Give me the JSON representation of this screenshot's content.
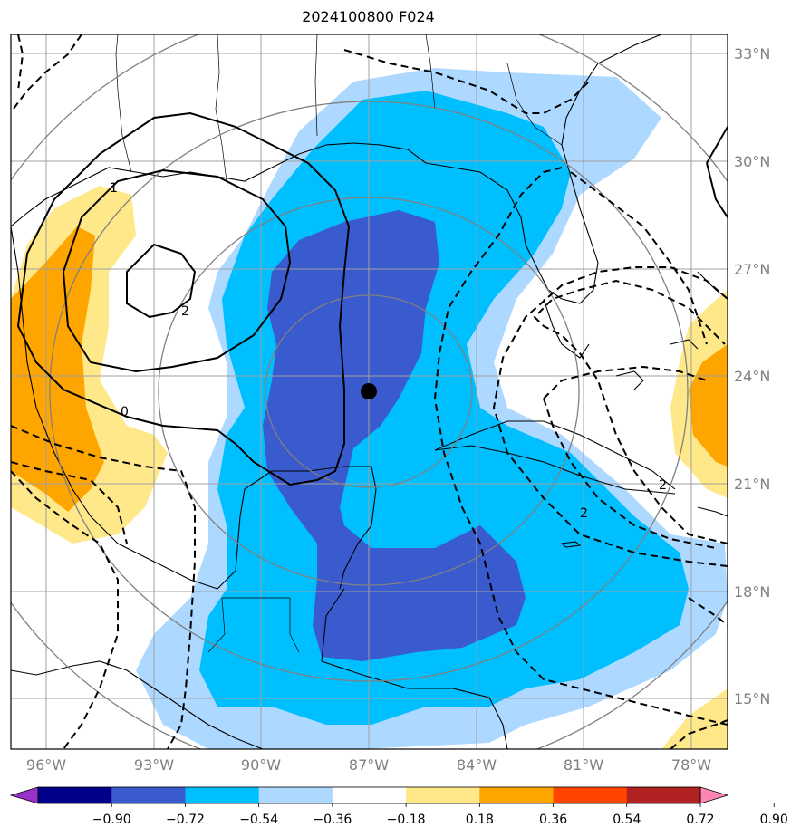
{
  "title": "2024100800 F024",
  "latitude_labels": [
    "33°N",
    "30°N",
    "27°N",
    "24°N",
    "21°N",
    "18°N",
    "15°N"
  ],
  "longitude_labels": [
    "96°W",
    "93°W",
    "90°W",
    "87°W",
    "84°W",
    "81°W",
    "78°W"
  ],
  "colorbar": {
    "tick_labels": [
      "−0.90",
      "−0.72",
      "−0.54",
      "−0.36",
      "−0.18",
      "0.18",
      "0.36",
      "0.54",
      "0.72",
      "0.90"
    ],
    "colors": [
      "#9932cc",
      "#00008b",
      "#3a5bcd",
      "#00bfff",
      "#add8ff",
      "#ffffff",
      "#ffe88a",
      "#ffa500",
      "#ff4500",
      "#b22222",
      "#ff85b5"
    ],
    "extend": "both"
  },
  "contour_labels": [
    "2",
    "1",
    "2",
    "0",
    "2",
    "2"
  ],
  "colors": {
    "grid": "#a0a0a0",
    "range_rings": "#808080",
    "contours": "#000000",
    "center_marker": "#000000"
  },
  "map": {
    "lon_range_deg_w": [
      97,
      77
    ],
    "lat_range_deg_n": [
      13.5,
      33.5
    ],
    "grid": true,
    "center_marker_latlon": [
      23.6,
      -87
    ]
  }
}
